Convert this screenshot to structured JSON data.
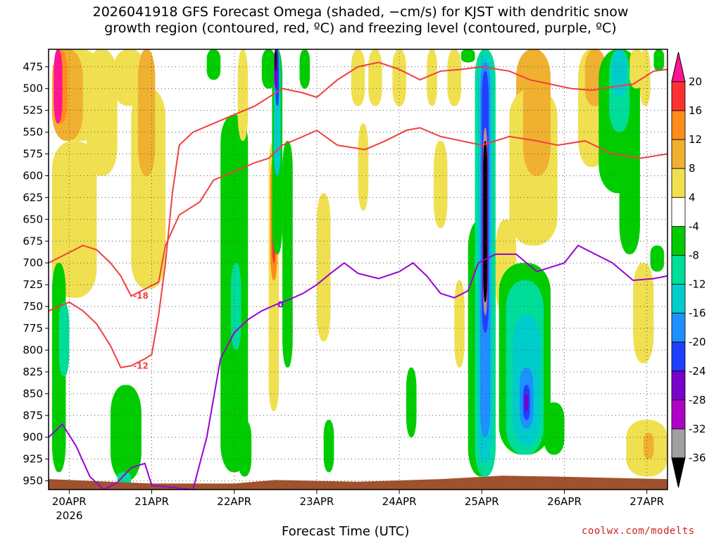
{
  "header": {
    "title_line1": "2026041918 GFS Forecast Omega (shaded, −cm/s) for KJST with dendritic snow",
    "title_line2": "growth region (contoured, red, ºC) and freezing level (contoured, purple, ºC)"
  },
  "footer": {
    "xlabel": "Forecast Time (UTC)",
    "credit": "coolwx.com/modelts"
  },
  "chart_data": {
    "type": "heatmap",
    "title": "2026041918 GFS Forecast Omega (shaded, −cm/s) for KJST with dendritic snow growth region (contoured, red, ºC) and freezing level (contoured, purple, ºC)",
    "xlabel": "Forecast Time (UTC)",
    "ylabel": "",
    "x_ticks": [
      "20APR",
      "21APR",
      "22APR",
      "23APR",
      "24APR",
      "25APR",
      "26APR",
      "27APR"
    ],
    "x_tick_sub": "2026",
    "xlim_hours": [
      -6,
      174
    ],
    "y_ticks": [
      475,
      500,
      525,
      550,
      575,
      600,
      625,
      650,
      675,
      700,
      725,
      750,
      775,
      800,
      825,
      850,
      875,
      900,
      925,
      950
    ],
    "ylim_hPa": [
      455,
      960
    ],
    "grid": true,
    "colorbar": {
      "levels": [
        20,
        16,
        12,
        8,
        4,
        -4,
        -8,
        -12,
        -16,
        -20,
        -24,
        -28,
        -32,
        -36
      ],
      "colors": [
        "#ff1493",
        "#ff3030",
        "#ff8c1a",
        "#f0b030",
        "#f0e050",
        "#ffffff",
        "#00cc00",
        "#00dd99",
        "#00cccc",
        "#1e90ff",
        "#2040ff",
        "#7a00cc",
        "#b000c8",
        "#a0a0a0",
        "#000000"
      ]
    },
    "ground": [
      {
        "h": -6,
        "p": 948
      },
      {
        "h": 24,
        "p": 953
      },
      {
        "h": 48,
        "p": 953
      },
      {
        "h": 60,
        "p": 949
      },
      {
        "h": 84,
        "p": 951
      },
      {
        "h": 108,
        "p": 948
      },
      {
        "h": 126,
        "p": 944
      },
      {
        "h": 140,
        "p": 945
      },
      {
        "h": 174,
        "p": 948
      }
    ],
    "series": [
      {
        "name": "-18",
        "color": "#f04040",
        "label_hour": 17,
        "points": [
          {
            "h": -6,
            "p": 700
          },
          {
            "h": 0,
            "p": 688
          },
          {
            "h": 4,
            "p": 680
          },
          {
            "h": 8,
            "p": 685
          },
          {
            "h": 12,
            "p": 700
          },
          {
            "h": 15,
            "p": 715
          },
          {
            "h": 18,
            "p": 738
          },
          {
            "h": 22,
            "p": 730
          },
          {
            "h": 26,
            "p": 722
          },
          {
            "h": 28,
            "p": 680
          },
          {
            "h": 32,
            "p": 645
          },
          {
            "h": 38,
            "p": 630
          },
          {
            "h": 42,
            "p": 605
          },
          {
            "h": 48,
            "p": 595
          },
          {
            "h": 54,
            "p": 585
          },
          {
            "h": 58,
            "p": 580
          },
          {
            "h": 62,
            "p": 565
          },
          {
            "h": 68,
            "p": 555
          },
          {
            "h": 72,
            "p": 548
          },
          {
            "h": 78,
            "p": 565
          },
          {
            "h": 86,
            "p": 570
          },
          {
            "h": 92,
            "p": 560
          },
          {
            "h": 98,
            "p": 548
          },
          {
            "h": 102,
            "p": 545
          },
          {
            "h": 108,
            "p": 555
          },
          {
            "h": 114,
            "p": 560
          },
          {
            "h": 120,
            "p": 565
          },
          {
            "h": 128,
            "p": 555
          },
          {
            "h": 136,
            "p": 560
          },
          {
            "h": 142,
            "p": 565
          },
          {
            "h": 150,
            "p": 560
          },
          {
            "h": 158,
            "p": 575
          },
          {
            "h": 166,
            "p": 580
          },
          {
            "h": 174,
            "p": 575
          }
        ]
      },
      {
        "name": "-12",
        "color": "#f04040",
        "label_hour": 17,
        "points": [
          {
            "h": -6,
            "p": 755
          },
          {
            "h": 0,
            "p": 745
          },
          {
            "h": 4,
            "p": 755
          },
          {
            "h": 8,
            "p": 770
          },
          {
            "h": 12,
            "p": 795
          },
          {
            "h": 15,
            "p": 820
          },
          {
            "h": 18,
            "p": 818
          },
          {
            "h": 22,
            "p": 810
          },
          {
            "h": 24,
            "p": 805
          },
          {
            "h": 26,
            "p": 760
          },
          {
            "h": 28,
            "p": 700
          },
          {
            "h": 30,
            "p": 620
          },
          {
            "h": 32,
            "p": 565
          },
          {
            "h": 36,
            "p": 550
          },
          {
            "h": 42,
            "p": 540
          },
          {
            "h": 48,
            "p": 530
          },
          {
            "h": 54,
            "p": 520
          },
          {
            "h": 58,
            "p": 510
          },
          {
            "h": 62,
            "p": 500
          },
          {
            "h": 68,
            "p": 505
          },
          {
            "h": 72,
            "p": 510
          },
          {
            "h": 78,
            "p": 490
          },
          {
            "h": 84,
            "p": 475
          },
          {
            "h": 90,
            "p": 470
          },
          {
            "h": 96,
            "p": 478
          },
          {
            "h": 102,
            "p": 490
          },
          {
            "h": 108,
            "p": 480
          },
          {
            "h": 114,
            "p": 478
          },
          {
            "h": 120,
            "p": 475
          },
          {
            "h": 128,
            "p": 480
          },
          {
            "h": 134,
            "p": 490
          },
          {
            "h": 140,
            "p": 495
          },
          {
            "h": 146,
            "p": 500
          },
          {
            "h": 152,
            "p": 502
          },
          {
            "h": 158,
            "p": 498
          },
          {
            "h": 164,
            "p": 495
          },
          {
            "h": 170,
            "p": 480
          },
          {
            "h": 174,
            "p": 478
          }
        ]
      },
      {
        "name": "0",
        "color": "#9b00d6",
        "label_hour": 60,
        "points": [
          {
            "h": -6,
            "p": 900
          },
          {
            "h": -2,
            "p": 885
          },
          {
            "h": 2,
            "p": 910
          },
          {
            "h": 6,
            "p": 945
          },
          {
            "h": 10,
            "p": 960
          },
          {
            "h": 14,
            "p": 952
          },
          {
            "h": 18,
            "p": 935
          },
          {
            "h": 22,
            "p": 930
          },
          {
            "h": 24,
            "p": 955
          },
          {
            "h": 36,
            "p": 960
          },
          {
            "h": 40,
            "p": 900
          },
          {
            "h": 44,
            "p": 810
          },
          {
            "h": 48,
            "p": 780
          },
          {
            "h": 52,
            "p": 765
          },
          {
            "h": 56,
            "p": 755
          },
          {
            "h": 60,
            "p": 748
          },
          {
            "h": 64,
            "p": 742
          },
          {
            "h": 68,
            "p": 735
          },
          {
            "h": 72,
            "p": 725
          },
          {
            "h": 76,
            "p": 712
          },
          {
            "h": 80,
            "p": 700
          },
          {
            "h": 84,
            "p": 712
          },
          {
            "h": 90,
            "p": 718
          },
          {
            "h": 96,
            "p": 710
          },
          {
            "h": 100,
            "p": 700
          },
          {
            "h": 104,
            "p": 715
          },
          {
            "h": 108,
            "p": 735
          },
          {
            "h": 112,
            "p": 740
          },
          {
            "h": 116,
            "p": 732
          },
          {
            "h": 119,
            "p": 700
          },
          {
            "h": 124,
            "p": 690
          },
          {
            "h": 130,
            "p": 690
          },
          {
            "h": 136,
            "p": 710
          },
          {
            "h": 140,
            "p": 705
          },
          {
            "h": 144,
            "p": 700
          },
          {
            "h": 148,
            "p": 680
          },
          {
            "h": 152,
            "p": 688
          },
          {
            "h": 158,
            "p": 700
          },
          {
            "h": 164,
            "p": 720
          },
          {
            "h": 170,
            "p": 718
          },
          {
            "h": 174,
            "p": 715
          }
        ]
      }
    ]
  }
}
